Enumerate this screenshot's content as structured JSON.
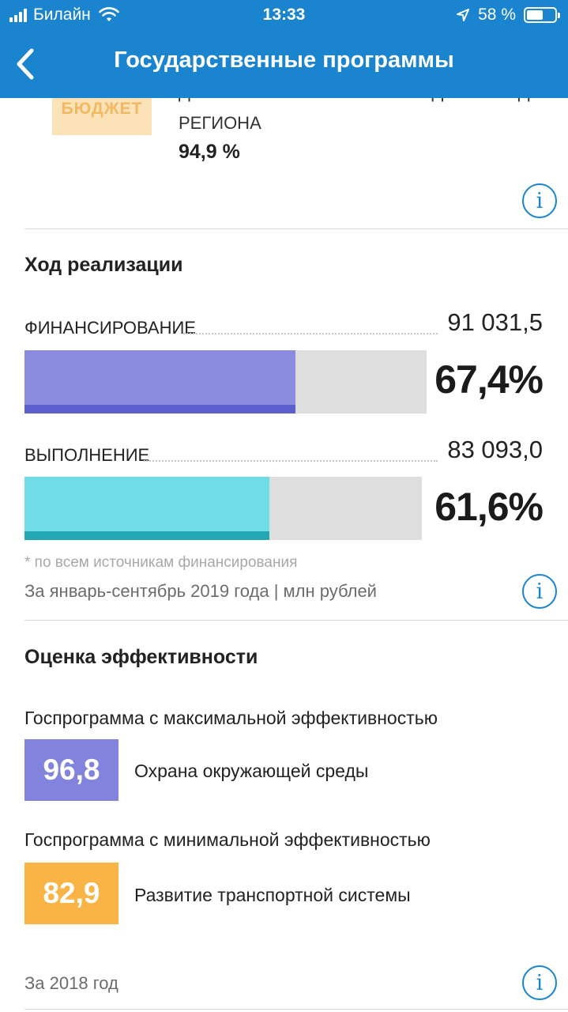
{
  "status_bar": {
    "carrier": "Билайн",
    "time": "13:33",
    "battery": "58 %",
    "battery_level": 0.58
  },
  "header": {
    "title": "Государственные программы"
  },
  "budget": {
    "badge": "БЮДЖЕТ",
    "label_cut": "ДОЛЯ ПРОГРАММНЫХ РАСХОДОВ В БЮДЖЕТЕ",
    "label": "РЕГИОНА",
    "value": "94,9 %"
  },
  "progress": {
    "title": "Ход реализации",
    "financing": {
      "label": "ФИНАНСИРОВАНИЕ",
      "amount": "91 031,5",
      "percent": "67,4%",
      "fill": 0.674,
      "color_main": "#8a8ce0",
      "color_base": "#5e5fcf"
    },
    "execution": {
      "label": "ВЫПОЛНЕНИЕ",
      "amount": "83 093,0",
      "percent": "61,6%",
      "fill": 0.616,
      "color_main": "#6fdde8",
      "color_base": "#22a8b2"
    },
    "footnote": "* по всем источникам финансирования",
    "period": "За январь-сентябрь 2019 года | млн рублей"
  },
  "efficiency": {
    "title": "Оценка эффективности",
    "max": {
      "label": "Госпрограмма с максимальной эффективностью",
      "score": "96,8",
      "name": "Охрана окружающей среды",
      "color": "#8283dc"
    },
    "min": {
      "label": "Госпрограмма с минимальной эффективностью",
      "score": "82,9",
      "name": "Развитие транспортной системы",
      "color": "#f9b445"
    },
    "period": "За 2018 год"
  },
  "info_icon_glyph": "i"
}
